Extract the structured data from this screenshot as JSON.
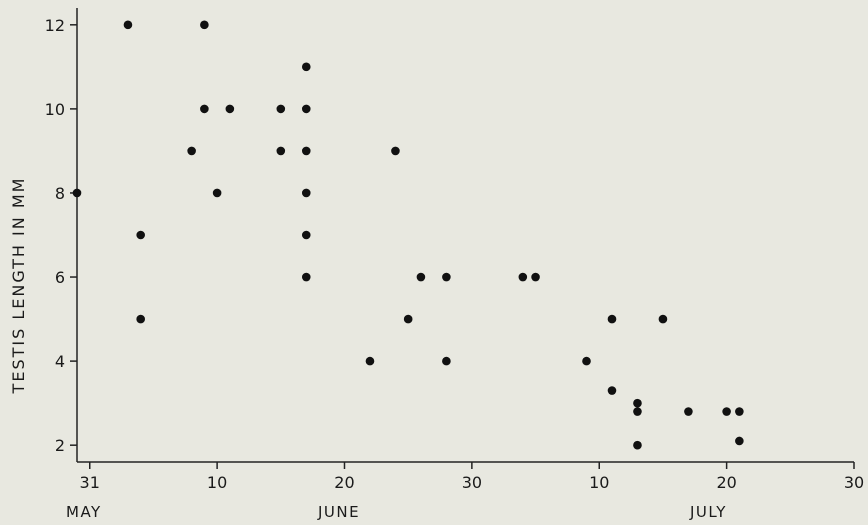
{
  "chart_data": {
    "type": "scatter",
    "ylabel": "TESTIS  LENGTH  IN  MM",
    "ylim": [
      1.6,
      12.4
    ],
    "yticks": [
      2,
      4,
      6,
      8,
      10,
      12
    ],
    "xlim": [
      "1968-05-30",
      "1968-07-30"
    ],
    "xticks": [
      {
        "date": "1968-05-31",
        "label": "31"
      },
      {
        "date": "1968-06-10",
        "label": "10"
      },
      {
        "date": "1968-06-20",
        "label": "20"
      },
      {
        "date": "1968-06-30",
        "label": "30"
      },
      {
        "date": "1968-07-10",
        "label": "10"
      },
      {
        "date": "1968-07-20",
        "label": "20"
      },
      {
        "date": "1968-07-30",
        "label": "30"
      }
    ],
    "month_labels": [
      "MAY",
      "JUNE",
      "JULY"
    ],
    "grid": false,
    "points": [
      {
        "x": "1968-05-30",
        "y": 8
      },
      {
        "x": "1968-06-03",
        "y": 12
      },
      {
        "x": "1968-06-04",
        "y": 7
      },
      {
        "x": "1968-06-04",
        "y": 5
      },
      {
        "x": "1968-06-08",
        "y": 9
      },
      {
        "x": "1968-06-09",
        "y": 10
      },
      {
        "x": "1968-06-09",
        "y": 12
      },
      {
        "x": "1968-06-10",
        "y": 8
      },
      {
        "x": "1968-06-11",
        "y": 10
      },
      {
        "x": "1968-06-15",
        "y": 10
      },
      {
        "x": "1968-06-15",
        "y": 9
      },
      {
        "x": "1968-06-17",
        "y": 11
      },
      {
        "x": "1968-06-17",
        "y": 10
      },
      {
        "x": "1968-06-17",
        "y": 9
      },
      {
        "x": "1968-06-17",
        "y": 8
      },
      {
        "x": "1968-06-17",
        "y": 7
      },
      {
        "x": "1968-06-17",
        "y": 6
      },
      {
        "x": "1968-06-22",
        "y": 4
      },
      {
        "x": "1968-06-24",
        "y": 9
      },
      {
        "x": "1968-06-25",
        "y": 5
      },
      {
        "x": "1968-06-26",
        "y": 6
      },
      {
        "x": "1968-06-28",
        "y": 6
      },
      {
        "x": "1968-06-28",
        "y": 4
      },
      {
        "x": "1968-07-04",
        "y": 6
      },
      {
        "x": "1968-07-05",
        "y": 6
      },
      {
        "x": "1968-07-09",
        "y": 4
      },
      {
        "x": "1968-07-11",
        "y": 5
      },
      {
        "x": "1968-07-11",
        "y": 3.3
      },
      {
        "x": "1968-07-13",
        "y": 3.0
      },
      {
        "x": "1968-07-13",
        "y": 2.8
      },
      {
        "x": "1968-07-13",
        "y": 2.0
      },
      {
        "x": "1968-07-15",
        "y": 5
      },
      {
        "x": "1968-07-17",
        "y": 2.8
      },
      {
        "x": "1968-07-20",
        "y": 2.8
      },
      {
        "x": "1968-07-21",
        "y": 2.8
      },
      {
        "x": "1968-07-21",
        "y": 2.1
      }
    ]
  }
}
